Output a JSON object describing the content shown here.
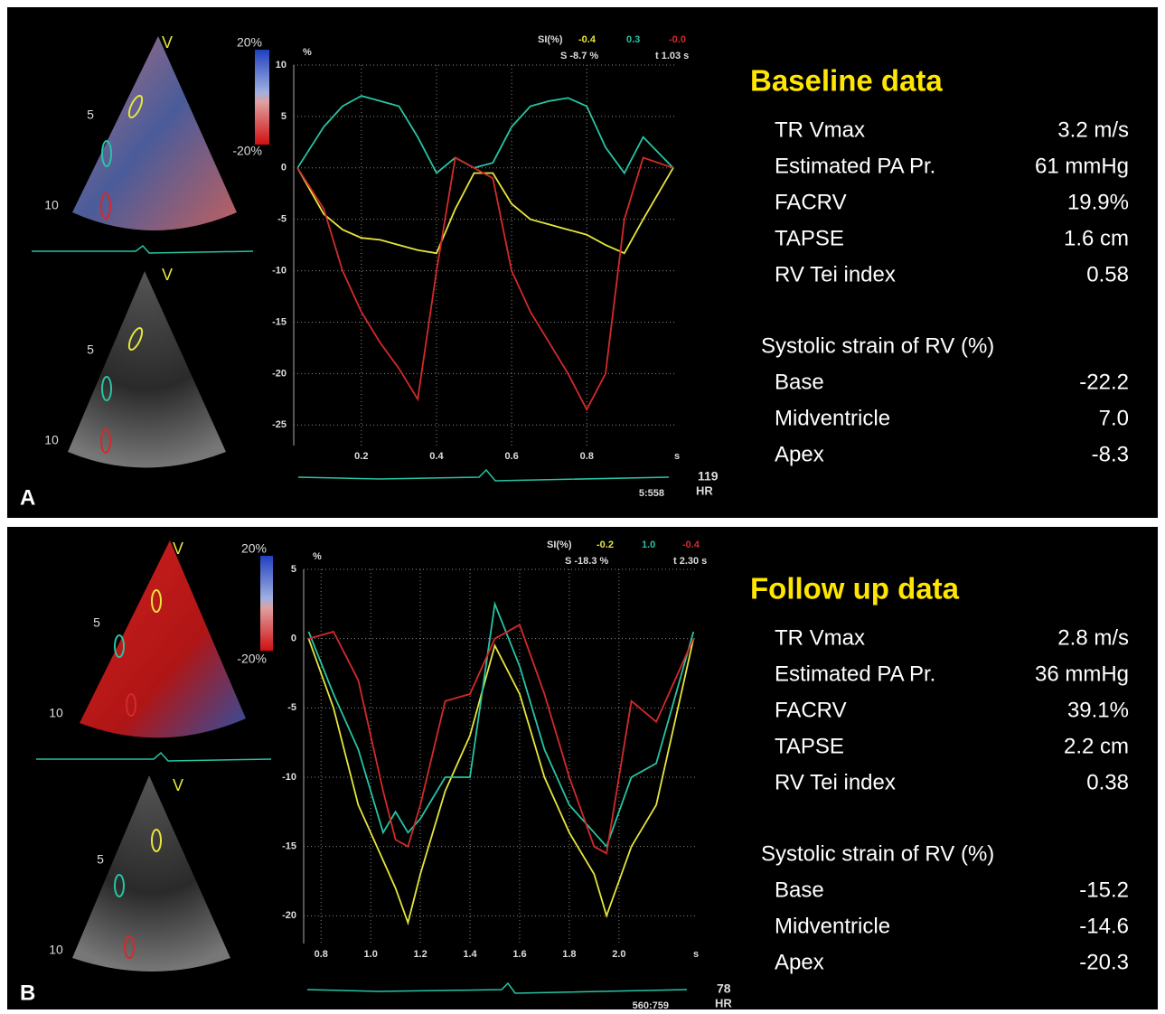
{
  "chart_data": [
    {
      "type": "line",
      "y_unit": "%",
      "x_unit": "s",
      "header": "SI(%)",
      "readout": [
        "S -8.7 %",
        "t 1.03 s"
      ],
      "hr": "119",
      "hr_label": "HR",
      "frame": "5:558",
      "x": [
        0.03,
        0.1,
        0.15,
        0.2,
        0.25,
        0.3,
        0.35,
        0.4,
        0.45,
        0.5,
        0.55,
        0.6,
        0.65,
        0.7,
        0.75,
        0.8,
        0.85,
        0.9,
        0.95,
        1.03
      ],
      "series": [
        {
          "name": "-0.4",
          "color": "#e6e63c",
          "values": [
            0,
            -4.5,
            -6,
            -6.8,
            -7,
            -7.5,
            -8,
            -8.3,
            -4,
            -0.5,
            -0.5,
            -3.5,
            -5,
            -5.5,
            -6,
            -6.5,
            -7.5,
            -8.3,
            -5,
            0
          ]
        },
        {
          "name": "0.3",
          "color": "#27c4a4",
          "values": [
            0,
            4,
            6,
            7,
            6.5,
            6,
            3,
            -0.5,
            1,
            0,
            0.5,
            4,
            6,
            6.5,
            6.8,
            6,
            2,
            -0.5,
            3,
            0
          ]
        },
        {
          "name": "-0.0",
          "color": "#d42a2a",
          "values": [
            0,
            -4,
            -10,
            -14,
            -17,
            -19.5,
            -22.5,
            -10,
            1,
            0,
            -1,
            -10,
            -14,
            -17,
            -20,
            -23.5,
            -20,
            -5,
            1,
            0
          ]
        }
      ],
      "xlim": [
        0.02,
        1.04
      ],
      "ylim": [
        -27,
        10
      ],
      "xticks": [
        0.2,
        0.4,
        0.6,
        0.8
      ],
      "yticks": [
        10,
        5,
        0,
        -5,
        -10,
        -15,
        -20,
        -25
      ],
      "grid": true
    },
    {
      "type": "line",
      "y_unit": "%",
      "x_unit": "s",
      "header": "SI(%)",
      "readout": [
        "S -18.3 %",
        "t 2.30 s"
      ],
      "hr": "78",
      "hr_label": "HR",
      "frame": "560:759",
      "x": [
        0.75,
        0.85,
        0.95,
        1.05,
        1.1,
        1.15,
        1.2,
        1.3,
        1.4,
        1.5,
        1.6,
        1.7,
        1.8,
        1.9,
        1.95,
        2.05,
        2.15,
        2.3
      ],
      "series": [
        {
          "name": "-0.2",
          "color": "#e6e63c",
          "values": [
            0,
            -5,
            -12,
            -16,
            -18,
            -20.5,
            -17,
            -11,
            -7,
            -0.5,
            -4,
            -10,
            -14,
            -17,
            -20,
            -15,
            -12,
            0
          ]
        },
        {
          "name": "1.0",
          "color": "#27c4a4",
          "values": [
            0.5,
            -4,
            -8,
            -14,
            -12.5,
            -14,
            -13,
            -10,
            -10,
            2.5,
            -2,
            -8,
            -12,
            -14,
            -15,
            -10,
            -9,
            0.5
          ]
        },
        {
          "name": "-0.4",
          "color": "#d42a2a",
          "values": [
            0,
            0.5,
            -3,
            -11,
            -14.5,
            -15,
            -12,
            -4.5,
            -4,
            0,
            1,
            -4,
            -10,
            -15,
            -15.5,
            -4.5,
            -6,
            0
          ]
        }
      ],
      "xlim": [
        0.73,
        2.31
      ],
      "ylim": [
        -22,
        5
      ],
      "xticks": [
        0.8,
        {
          "value": 1,
          "label": "1.0"
        },
        1.2,
        1.4,
        1.6,
        1.8,
        {
          "value": 2,
          "label": "2.0"
        }
      ],
      "yticks": [
        5,
        0,
        -5,
        -10,
        -15,
        -20
      ],
      "grid": true
    }
  ],
  "panels": [
    {
      "label": "A",
      "echo_labels": [
        "V",
        "5",
        "10",
        "V",
        "5",
        "10"
      ],
      "color_scale": [
        "20%",
        "-20%"
      ],
      "summary": {
        "title": "Baseline data",
        "rows": [
          [
            "TR Vmax",
            "3.2 m/s"
          ],
          [
            "Estimated PA Pr.",
            "61 mmHg"
          ],
          [
            "FACRV",
            "19.9%"
          ],
          [
            "TAPSE",
            "1.6 cm"
          ],
          [
            "RV Tei index",
            "0.58"
          ]
        ],
        "strain_title": "Systolic strain of RV (%)",
        "strain_rows": [
          [
            "Base",
            "-22.2"
          ],
          [
            "Midventricle",
            "7.0"
          ],
          [
            "Apex",
            "-8.3"
          ]
        ]
      }
    },
    {
      "label": "B",
      "echo_labels": [
        "V",
        "5",
        "10",
        "V",
        "5",
        "10"
      ],
      "color_scale": [
        "20%",
        "-20%"
      ],
      "summary": {
        "title": "Follow up data",
        "rows": [
          [
            "TR Vmax",
            "2.8 m/s"
          ],
          [
            "Estimated PA Pr.",
            "36 mmHg"
          ],
          [
            "FACRV",
            "39.1%"
          ],
          [
            "TAPSE",
            "2.2 cm"
          ],
          [
            "RV Tei index",
            "0.38"
          ]
        ],
        "strain_title": "Systolic strain of RV (%)",
        "strain_rows": [
          [
            "Base",
            "-15.2"
          ],
          [
            "Midventricle",
            "-14.6"
          ],
          [
            "Apex",
            "-20.3"
          ]
        ]
      }
    }
  ]
}
